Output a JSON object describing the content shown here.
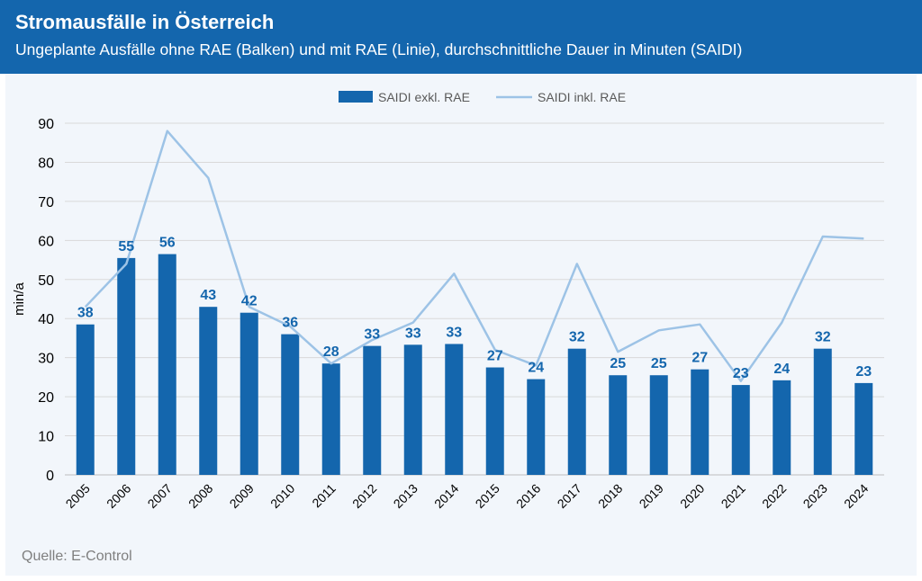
{
  "header": {
    "title": "Stromausfälle in Österreich",
    "subtitle": "Ungeplante Ausfälle ohne RAE (Balken) und mit RAE (Linie), durchschnittliche Dauer in Minuten (SAIDI)"
  },
  "footer": {
    "source": "Quelle: E-Control"
  },
  "colors": {
    "header_bg": "#1466ad",
    "bar": "#1466ad",
    "line": "#9dc3e6",
    "label": "#1466ad",
    "grid": "#d9d9d9",
    "panel_bg": "#f2f6fb"
  },
  "chart_data": {
    "type": "bar",
    "categories": [
      "2005",
      "2006",
      "2007",
      "2008",
      "2009",
      "2010",
      "2011",
      "2012",
      "2013",
      "2014",
      "2015",
      "2016",
      "2017",
      "2018",
      "2019",
      "2020",
      "2021",
      "2022",
      "2023",
      "2024"
    ],
    "series": [
      {
        "name": "SAIDI exkl. RAE",
        "type": "bar",
        "values": [
          38.5,
          55.5,
          56.5,
          43,
          41.5,
          36,
          28.5,
          33,
          33.3,
          33.5,
          27.5,
          24.5,
          32.3,
          25.5,
          25.5,
          27,
          23,
          24.2,
          32.3,
          23.5
        ],
        "data_labels": [
          "38",
          "55",
          "56",
          "43",
          "42",
          "36",
          "28",
          "33",
          "33",
          "33",
          "27",
          "24",
          "32",
          "25",
          "25",
          "27",
          "23",
          "24",
          "32",
          "23"
        ]
      },
      {
        "name": "SAIDI inkl. RAE",
        "type": "line",
        "values": [
          43,
          54,
          88,
          76,
          43,
          38,
          28.5,
          34.5,
          39,
          51.5,
          32,
          28,
          54,
          31.5,
          37,
          38.5,
          24,
          39,
          61,
          60.5
        ]
      }
    ],
    "ylabel": "min/a",
    "ylim": [
      0,
      90
    ],
    "yticks": [
      "0",
      "10",
      "20",
      "30",
      "40",
      "50",
      "60",
      "70",
      "80",
      "90"
    ],
    "grid": true,
    "legend": "top-center"
  }
}
